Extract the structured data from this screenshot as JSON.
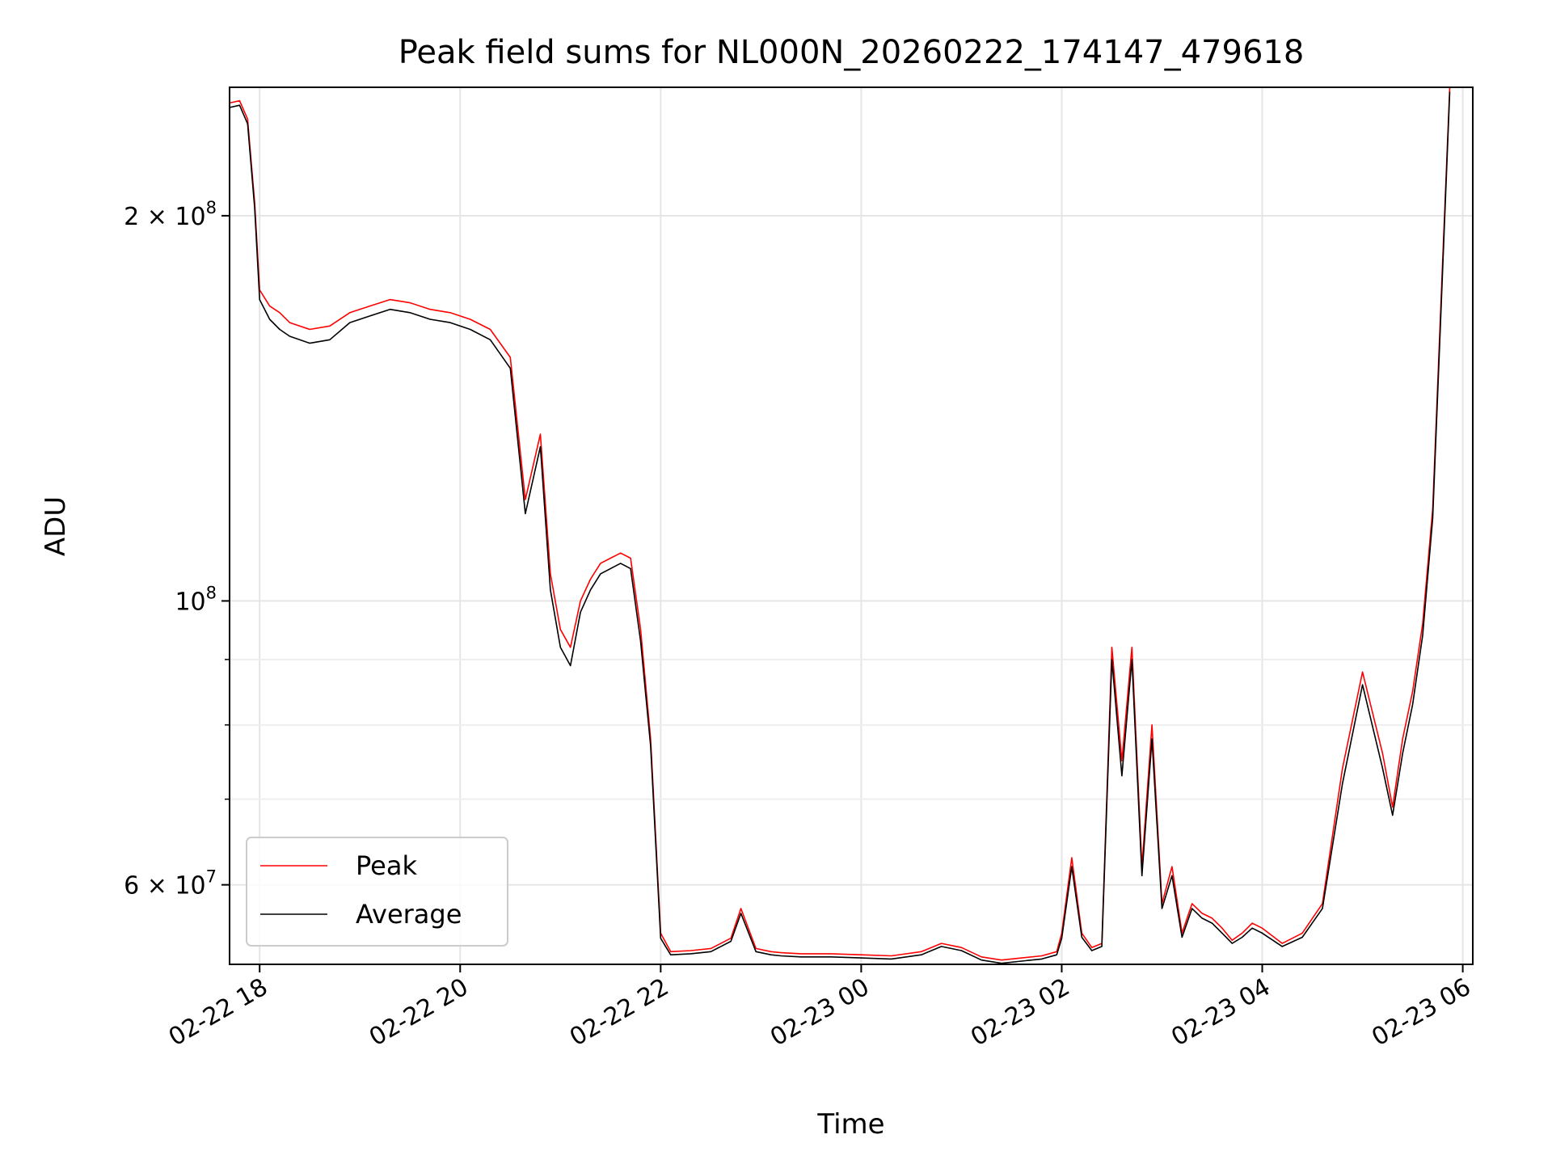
{
  "chart_data": {
    "type": "line",
    "title": "Peak field sums for NL000N_20260222_174147_479618",
    "xlabel": "Time",
    "ylabel": "ADU",
    "yscale": "log",
    "xlim_hours": [
      -0.3,
      12.1
    ],
    "ylim": [
      52000000,
      252000000
    ],
    "x_ticks": [
      {
        "hour": 0,
        "label": "02-22 18"
      },
      {
        "hour": 2,
        "label": "02-22 20"
      },
      {
        "hour": 4,
        "label": "02-22 22"
      },
      {
        "hour": 6,
        "label": "02-23 00"
      },
      {
        "hour": 8,
        "label": "02-23 02"
      },
      {
        "hour": 10,
        "label": "02-23 04"
      },
      {
        "hour": 12,
        "label": "02-23 06"
      }
    ],
    "y_ticks": [
      {
        "value": 60000000,
        "label_base": "6 × 10",
        "label_exp": "7"
      },
      {
        "value": 100000000,
        "label_base": "10",
        "label_exp": "8"
      },
      {
        "value": 200000000,
        "label_base": "2 × 10",
        "label_exp": "8"
      }
    ],
    "y_minor_ticks": [
      70000000,
      80000000,
      90000000
    ],
    "grid": true,
    "legend_position": "lower-left",
    "series": [
      {
        "name": "Peak",
        "color": "#ff0000",
        "x_hours": [
          -0.3,
          -0.2,
          -0.12,
          -0.05,
          0.0,
          0.1,
          0.2,
          0.3,
          0.5,
          0.7,
          0.9,
          1.1,
          1.3,
          1.5,
          1.7,
          1.9,
          2.1,
          2.3,
          2.5,
          2.65,
          2.8,
          2.9,
          3.0,
          3.1,
          3.2,
          3.3,
          3.4,
          3.5,
          3.6,
          3.7,
          3.8,
          3.9,
          4.0,
          4.1,
          4.3,
          4.5,
          4.7,
          4.8,
          4.95,
          5.1,
          5.2,
          5.4,
          5.7,
          6.0,
          6.3,
          6.6,
          6.8,
          7.0,
          7.2,
          7.4,
          7.6,
          7.8,
          7.95,
          8.0,
          8.1,
          8.2,
          8.3,
          8.4,
          8.5,
          8.6,
          8.7,
          8.8,
          8.9,
          9.0,
          9.1,
          9.2,
          9.3,
          9.4,
          9.5,
          9.6,
          9.7,
          9.8,
          9.9,
          10.0,
          10.2,
          10.4,
          10.6,
          10.8,
          11.0,
          11.2,
          11.3,
          11.4,
          11.5,
          11.6,
          11.7,
          11.8,
          11.87
        ],
        "values": [
          245000000,
          246000000,
          238000000,
          205000000,
          175000000,
          170000000,
          168000000,
          165000000,
          163000000,
          164000000,
          168000000,
          170000000,
          172000000,
          171000000,
          169000000,
          168000000,
          166000000,
          163000000,
          155000000,
          120000000,
          135000000,
          105000000,
          95000000,
          92000000,
          100000000,
          104000000,
          107000000,
          108000000,
          109000000,
          108000000,
          95000000,
          78000000,
          55000000,
          53200000,
          53300000,
          53500000,
          54500000,
          57500000,
          53500000,
          53200000,
          53100000,
          53000000,
          53000000,
          52900000,
          52800000,
          53200000,
          54000000,
          53600000,
          52700000,
          52400000,
          52600000,
          52800000,
          53200000,
          55000000,
          63000000,
          55000000,
          53600000,
          54000000,
          92000000,
          75000000,
          92000000,
          62000000,
          80000000,
          58000000,
          62000000,
          55000000,
          58000000,
          57000000,
          56500000,
          55500000,
          54300000,
          55000000,
          56000000,
          55500000,
          54000000,
          55000000,
          58000000,
          74000000,
          88000000,
          76000000,
          69000000,
          78000000,
          85000000,
          96000000,
          118000000,
          185000000,
          252000000
        ]
      },
      {
        "name": "Average",
        "color": "#000000",
        "x_hours": [
          -0.3,
          -0.2,
          -0.12,
          -0.05,
          0.0,
          0.1,
          0.2,
          0.3,
          0.5,
          0.7,
          0.9,
          1.1,
          1.3,
          1.5,
          1.7,
          1.9,
          2.1,
          2.3,
          2.5,
          2.65,
          2.8,
          2.9,
          3.0,
          3.1,
          3.2,
          3.3,
          3.4,
          3.5,
          3.6,
          3.7,
          3.8,
          3.9,
          4.0,
          4.1,
          4.3,
          4.5,
          4.7,
          4.8,
          4.95,
          5.1,
          5.2,
          5.4,
          5.7,
          6.0,
          6.3,
          6.6,
          6.8,
          7.0,
          7.2,
          7.4,
          7.6,
          7.8,
          7.95,
          8.0,
          8.1,
          8.2,
          8.3,
          8.4,
          8.5,
          8.6,
          8.7,
          8.8,
          8.9,
          9.0,
          9.1,
          9.2,
          9.3,
          9.4,
          9.5,
          9.6,
          9.7,
          9.8,
          9.9,
          10.0,
          10.2,
          10.4,
          10.6,
          10.8,
          11.0,
          11.2,
          11.3,
          11.4,
          11.5,
          11.6,
          11.7,
          11.8,
          11.87
        ],
        "values": [
          243000000,
          244000000,
          236000000,
          203000000,
          172000000,
          166000000,
          163000000,
          161000000,
          159000000,
          160000000,
          165000000,
          167000000,
          169000000,
          168000000,
          166000000,
          165000000,
          163000000,
          160000000,
          152000000,
          117000000,
          132000000,
          102000000,
          92000000,
          89000000,
          98000000,
          102000000,
          105000000,
          106000000,
          107000000,
          106000000,
          93000000,
          77000000,
          54500000,
          52900000,
          53000000,
          53200000,
          54200000,
          57000000,
          53200000,
          52900000,
          52800000,
          52700000,
          52700000,
          52600000,
          52500000,
          52900000,
          53700000,
          53300000,
          52400000,
          52100000,
          52300000,
          52500000,
          52900000,
          54500000,
          62000000,
          54600000,
          53300000,
          53700000,
          90000000,
          73000000,
          90000000,
          61000000,
          78000000,
          57500000,
          61000000,
          54600000,
          57500000,
          56500000,
          56000000,
          55000000,
          54000000,
          54600000,
          55500000,
          55000000,
          53700000,
          54600000,
          57500000,
          72000000,
          86000000,
          74000000,
          68000000,
          76000000,
          83000000,
          94000000,
          116000000,
          182000000,
          250000000
        ]
      }
    ]
  }
}
